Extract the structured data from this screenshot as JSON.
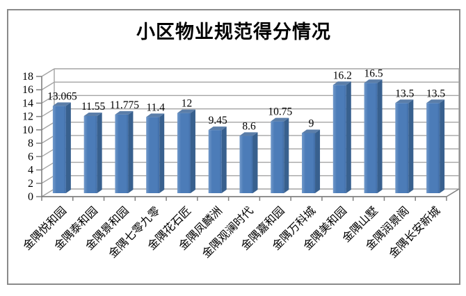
{
  "chart_data": {
    "type": "bar",
    "style": "3d-column",
    "title": "小区物业规范得分情况",
    "categories": [
      "金隅悦和园",
      "金隅泰和园",
      "金隅景和园",
      "金隅七零九零",
      "金隅花石匠",
      "金隅凤麟洲",
      "金隅观澜时代",
      "金隅嘉和园",
      "金隅万科城",
      "金隅美和园",
      "金隅山墅",
      "金隅润景阁",
      "金隅长安新城"
    ],
    "values": [
      13.065,
      11.55,
      11.775,
      11.4,
      12,
      9.45,
      8.6,
      10.75,
      9,
      16.2,
      16.5,
      13.5,
      13.5
    ],
    "value_labels": [
      "13.065",
      "11.55",
      "11.775",
      "11.4",
      "12",
      "9.45",
      "8.6",
      "10.75",
      "9",
      "16.2",
      "16.5",
      "13.5",
      "13.5"
    ],
    "xlabel": "",
    "ylabel": "",
    "ylim": [
      0,
      18
    ],
    "ytick_step": 2,
    "ytick_labels": [
      "0",
      "2",
      "4",
      "6",
      "8",
      "10",
      "12",
      "14",
      "16",
      "18"
    ],
    "grid": true,
    "legend": "none",
    "x_label_rotation_deg": 45,
    "colors": {
      "bar_front": "#4c7cb8",
      "bar_front_light": "#7199ca",
      "bar_front_dark": "#416da6",
      "bar_side": "#38608e",
      "bar_top": "#5b7ea9",
      "gridline": "#a3a3a3",
      "axis": "#7f7f7f",
      "label_text": "#000000",
      "frame_border": "#8a8a8a"
    }
  }
}
